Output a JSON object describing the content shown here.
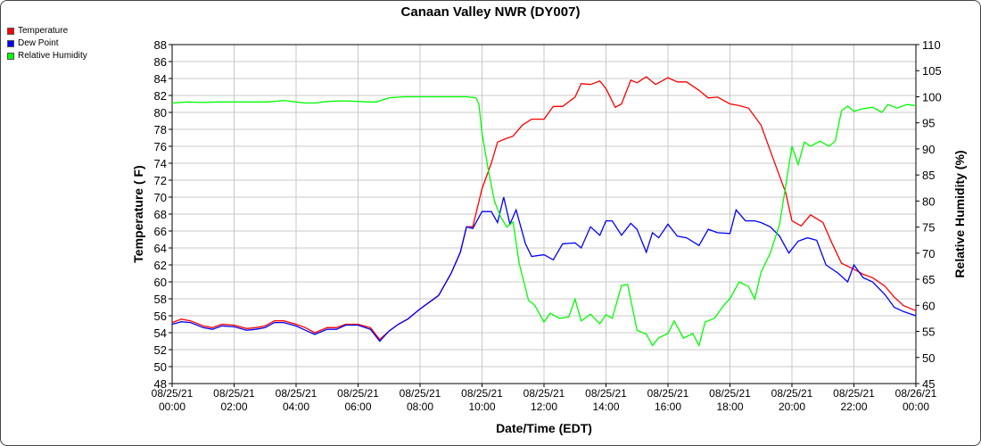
{
  "chart_data": {
    "type": "line",
    "title": "Canaan Valley NWR (DY007)",
    "xlabel": "Date/Time (EDT)",
    "ylabel": "Temperature ( F)",
    "y2label": "Relative Humidity (%)",
    "xlim_hours": [
      0,
      24
    ],
    "ylim": [
      48,
      88
    ],
    "y2lim": [
      45,
      110
    ],
    "yticks": [
      48,
      50,
      52,
      54,
      56,
      58,
      60,
      62,
      64,
      66,
      68,
      70,
      72,
      74,
      76,
      78,
      80,
      82,
      84,
      86,
      88
    ],
    "y2ticks": [
      45,
      50,
      55,
      60,
      65,
      70,
      75,
      80,
      85,
      90,
      95,
      100,
      105,
      110
    ],
    "xticks": [
      {
        "h": 0,
        "date": "08/25/21",
        "time": "00:00"
      },
      {
        "h": 2,
        "date": "08/25/21",
        "time": "02:00"
      },
      {
        "h": 4,
        "date": "08/25/21",
        "time": "04:00"
      },
      {
        "h": 6,
        "date": "08/25/21",
        "time": "06:00"
      },
      {
        "h": 8,
        "date": "08/25/21",
        "time": "08:00"
      },
      {
        "h": 10,
        "date": "08/25/21",
        "time": "10:00"
      },
      {
        "h": 12,
        "date": "08/25/21",
        "time": "12:00"
      },
      {
        "h": 14,
        "date": "08/25/21",
        "time": "14:00"
      },
      {
        "h": 16,
        "date": "08/25/21",
        "time": "16:00"
      },
      {
        "h": 18,
        "date": "08/25/21",
        "time": "18:00"
      },
      {
        "h": 20,
        "date": "08/25/21",
        "time": "20:00"
      },
      {
        "h": 22,
        "date": "08/25/21",
        "time": "22:00"
      },
      {
        "h": 24,
        "date": "08/26/21",
        "time": "00:00"
      }
    ],
    "grid": true,
    "legend_position": "top-left",
    "series": [
      {
        "name": "Temperature",
        "color": "#ff0000",
        "axis": "left",
        "x": [
          0,
          0.3,
          0.6,
          1,
          1.3,
          1.6,
          2,
          2.4,
          2.7,
          3,
          3.3,
          3.6,
          4,
          4.3,
          4.6,
          5,
          5.3,
          5.6,
          6,
          6.4,
          6.7,
          7,
          7.3,
          7.6,
          8,
          8.3,
          8.6,
          9,
          9.3,
          9.5,
          9.7,
          10,
          10.3,
          10.5,
          10.7,
          11,
          11.3,
          11.6,
          12,
          12.3,
          12.6,
          13,
          13.2,
          13.5,
          13.8,
          14,
          14.3,
          14.5,
          14.8,
          15,
          15.3,
          15.6,
          16,
          16.3,
          16.6,
          17,
          17.3,
          17.6,
          18,
          18.3,
          18.6,
          19,
          19.2,
          19.5,
          19.8,
          20,
          20.3,
          20.6,
          21,
          21.3,
          21.6,
          22,
          22.3,
          22.6,
          23,
          23.3,
          23.6,
          24
        ],
        "values": [
          55.2,
          55.6,
          55.4,
          54.8,
          54.6,
          55.0,
          54.9,
          54.5,
          54.6,
          54.8,
          55.4,
          55.4,
          55.0,
          54.6,
          54.0,
          54.6,
          54.6,
          55.0,
          55.0,
          54.6,
          53.2,
          54.2,
          55.0,
          55.6,
          56.8,
          57.6,
          58.4,
          61.0,
          63.5,
          66.5,
          66.5,
          71.0,
          74.0,
          76.5,
          76.8,
          77.2,
          78.5,
          79.2,
          79.2,
          80.7,
          80.7,
          81.8,
          83.4,
          83.3,
          83.7,
          82.8,
          80.6,
          81.0,
          83.8,
          83.5,
          84.2,
          83.3,
          84.1,
          83.6,
          83.6,
          82.6,
          81.7,
          81.8,
          81.0,
          80.8,
          80.5,
          78.5,
          76.5,
          73.5,
          70.5,
          67.2,
          66.6,
          67.9,
          67.0,
          64.5,
          62.2,
          61.5,
          60.9,
          60.5,
          59.5,
          58.2,
          57.2,
          56.6
        ]
      },
      {
        "name": "Dew Point",
        "color": "#0000ff",
        "axis": "left",
        "x": [
          0,
          0.3,
          0.6,
          1,
          1.3,
          1.6,
          2,
          2.4,
          2.7,
          3,
          3.3,
          3.6,
          4,
          4.3,
          4.6,
          5,
          5.3,
          5.6,
          6,
          6.4,
          6.7,
          7,
          7.3,
          7.6,
          8,
          8.3,
          8.6,
          9,
          9.3,
          9.5,
          9.7,
          10,
          10.3,
          10.5,
          10.7,
          10.9,
          11.1,
          11.4,
          11.6,
          12,
          12.3,
          12.6,
          13,
          13.2,
          13.5,
          13.8,
          14,
          14.2,
          14.5,
          14.8,
          15,
          15.3,
          15.5,
          15.7,
          16,
          16.3,
          16.6,
          17,
          17.3,
          17.6,
          18,
          18.2,
          18.5,
          18.8,
          19,
          19.3,
          19.6,
          19.9,
          20.2,
          20.5,
          20.8,
          21.1,
          21.5,
          21.8,
          22,
          22.3,
          22.6,
          23,
          23.3,
          23.6,
          24
        ],
        "values": [
          55.0,
          55.3,
          55.2,
          54.6,
          54.4,
          54.8,
          54.7,
          54.3,
          54.4,
          54.6,
          55.2,
          55.2,
          54.8,
          54.3,
          53.8,
          54.4,
          54.4,
          54.9,
          54.9,
          54.4,
          53.0,
          54.2,
          55.0,
          55.6,
          56.8,
          57.6,
          58.4,
          61.0,
          63.5,
          66.5,
          66.3,
          68.3,
          68.3,
          67.0,
          70.0,
          66.8,
          68.5,
          64.5,
          63.0,
          63.2,
          62.6,
          64.5,
          64.6,
          64.0,
          66.5,
          65.5,
          67.2,
          67.2,
          65.5,
          66.9,
          66.2,
          63.5,
          65.8,
          65.2,
          66.8,
          65.4,
          65.2,
          64.3,
          66.2,
          65.8,
          65.7,
          68.5,
          67.2,
          67.2,
          67.0,
          66.5,
          65.4,
          63.4,
          64.8,
          65.2,
          64.9,
          62.0,
          61.0,
          60.0,
          62.0,
          60.5,
          60.0,
          58.5,
          57.0,
          56.5,
          56.0
        ]
      },
      {
        "name": "Relative Humidity",
        "color": "#00ff00",
        "axis": "right",
        "x": [
          0,
          0.5,
          1,
          1.5,
          2,
          2.5,
          3,
          3.3,
          3.6,
          4,
          4.3,
          4.6,
          5,
          5.5,
          6,
          6.3,
          6.6,
          7,
          7.5,
          8,
          8.5,
          9,
          9.5,
          9.8,
          9.9,
          10,
          10.2,
          10.4,
          10.6,
          10.8,
          11,
          11.2,
          11.5,
          11.7,
          12,
          12.2,
          12.5,
          12.8,
          13,
          13.2,
          13.5,
          13.8,
          14,
          14.2,
          14.5,
          14.7,
          15,
          15.3,
          15.5,
          15.7,
          16,
          16.2,
          16.5,
          16.8,
          17,
          17.2,
          17.5,
          17.8,
          18,
          18.3,
          18.6,
          18.8,
          19,
          19.3,
          19.6,
          19.8,
          20,
          20.2,
          20.4,
          20.6,
          20.9,
          21.2,
          21.4,
          21.6,
          21.8,
          22,
          22.3,
          22.6,
          22.9,
          23.1,
          23.4,
          23.7,
          24
        ],
        "values": [
          98.8,
          99.0,
          98.9,
          99.0,
          99.0,
          99.0,
          99.0,
          99.1,
          99.3,
          99.0,
          98.8,
          98.8,
          99.1,
          99.2,
          99.1,
          99.0,
          99.0,
          99.8,
          100,
          100,
          100,
          100,
          100,
          99.8,
          98.6,
          93,
          86,
          80,
          77,
          75,
          76,
          68,
          61,
          60,
          56.8,
          58.5,
          57.5,
          57.8,
          61.2,
          57,
          58.3,
          56.5,
          58.2,
          57.5,
          63.8,
          64,
          55.2,
          54.5,
          52.3,
          53.8,
          54.6,
          57,
          53.7,
          54.6,
          52.3,
          56.8,
          57.5,
          60.0,
          61.3,
          64.5,
          63.6,
          61.2,
          66.3,
          70.0,
          75.5,
          83.0,
          90.5,
          87,
          91.3,
          90.5,
          91.5,
          90.5,
          91.5,
          97.3,
          98.2,
          97.2,
          97.7,
          98.0,
          97.0,
          98.5,
          97.8,
          98.5,
          98.3
        ]
      }
    ]
  }
}
